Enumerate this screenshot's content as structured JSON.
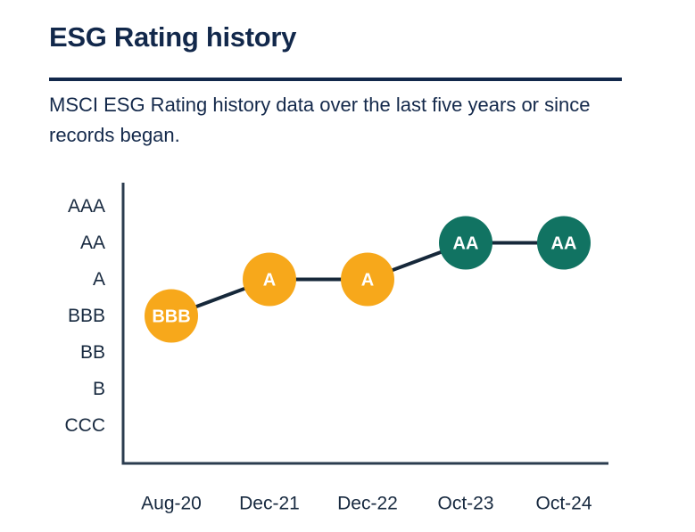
{
  "header": {
    "title": "ESG Rating history",
    "subtitle": "MSCI ESG Rating history data over the last five years or since records began."
  },
  "colors": {
    "navy_text": "#12284B",
    "divider": "#12284B",
    "axis": "#2B3C4F",
    "tick_label": "#17293F",
    "connector": "#16283A",
    "rating_yellow": "#F7A81B",
    "rating_teal": "#117362",
    "marker_text": "#FFFFFF",
    "background": "#FFFFFF"
  },
  "chart_data": {
    "type": "line",
    "title": "ESG Rating history",
    "x": [
      "Aug-20",
      "Dec-21",
      "Dec-22",
      "Oct-23",
      "Oct-24"
    ],
    "y_axis_labels": [
      "AAA",
      "AA",
      "A",
      "BBB",
      "BB",
      "B",
      "CCC"
    ],
    "series": [
      {
        "name": "MSCI ESG Rating",
        "values": [
          "BBB",
          "A",
          "A",
          "AA",
          "AA"
        ],
        "marker_colors": [
          "#F7A81B",
          "#F7A81B",
          "#F7A81B",
          "#117362",
          "#117362"
        ]
      }
    ],
    "grid": false,
    "legend": "none",
    "marker_shape": "circle-with-rating-label"
  }
}
